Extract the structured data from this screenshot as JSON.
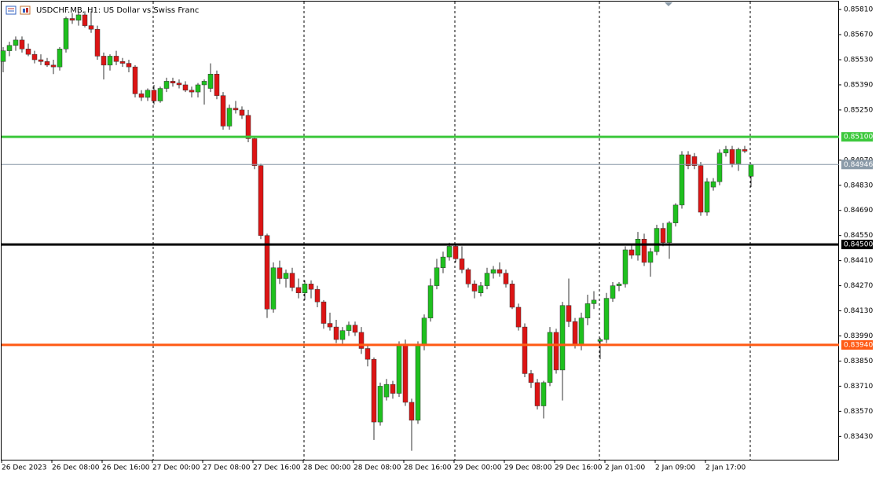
{
  "chart_data": {
    "type": "candlestick",
    "title": "USDCHF.MB, H1:  US Dollar vs Swiss Franc",
    "up_color": "#1ec01e",
    "down_color": "#dc1414",
    "categories": [
      "26 Dec 2023",
      null,
      null,
      null,
      null,
      null,
      null,
      null,
      "26 Dec 08:00",
      null,
      null,
      null,
      null,
      null,
      null,
      null,
      "26 Dec 16:00",
      null,
      null,
      null,
      null,
      null,
      null,
      null,
      "27 Dec 00:00",
      null,
      null,
      null,
      null,
      null,
      null,
      null,
      "27 Dec 08:00",
      null,
      null,
      null,
      null,
      null,
      null,
      null,
      "27 Dec 16:00",
      null,
      null,
      null,
      null,
      null,
      null,
      null,
      "28 Dec 00:00",
      null,
      null,
      null,
      null,
      null,
      null,
      null,
      "28 Dec 08:00",
      null,
      null,
      null,
      null,
      null,
      null,
      null,
      "28 Dec 16:00",
      null,
      null,
      null,
      null,
      null,
      null,
      null,
      "29 Dec 00:00",
      null,
      null,
      null,
      null,
      null,
      null,
      null,
      "29 Dec 08:00",
      null,
      null,
      null,
      null,
      null,
      null,
      null,
      "29 Dec 16:00",
      null,
      null,
      null,
      null,
      null,
      null,
      null,
      "2 Jan 01:00",
      null,
      null,
      null,
      null,
      null,
      null,
      null,
      "2 Jan 09:00",
      null,
      null,
      null,
      null,
      null,
      null,
      null,
      "2 Jan 17:00",
      null,
      null,
      null,
      null,
      null,
      null,
      null
    ],
    "open": [
      0.8552,
      0.8558,
      0.8561,
      0.8564,
      0.8559,
      0.8556,
      0.8553,
      0.8552,
      0.855,
      0.8549,
      0.8559,
      0.8576,
      0.8575,
      0.8578,
      0.8572,
      0.857,
      0.8555,
      0.855,
      0.8555,
      0.8552,
      0.8551,
      0.8549,
      0.8534,
      0.8532,
      0.8536,
      0.853,
      0.8537,
      0.8541,
      0.854,
      0.8539,
      0.8536,
      0.8535,
      0.8539,
      0.8537,
      0.8545,
      0.8533,
      0.8516,
      0.8526,
      0.8525,
      0.8522,
      0.8509,
      0.8494,
      0.8455,
      0.8414,
      0.8437,
      0.8431,
      0.8434,
      0.8426,
      0.8423,
      0.8428,
      0.8425,
      0.8418,
      0.8406,
      0.8404,
      0.8397,
      0.8402,
      0.8405,
      0.8401,
      0.8392,
      0.8386,
      0.8351,
      0.8365,
      0.8372,
      0.8367,
      0.8394,
      0.8362,
      0.8352,
      0.8394,
      0.8409,
      0.8427,
      0.8437,
      0.8443,
      0.8449,
      0.8442,
      0.8436,
      0.8428,
      0.8423,
      0.8427,
      0.8434,
      0.8436,
      0.8434,
      0.8428,
      0.8415,
      0.8404,
      0.8378,
      0.8373,
      0.836,
      0.8373,
      0.8401,
      0.838,
      0.8416,
      0.8407,
      0.8394,
      0.8409,
      0.8417,
      0.8396,
      0.8397,
      0.842,
      0.8427,
      0.8428,
      0.8447,
      0.8444,
      0.8453,
      0.844,
      0.8446,
      0.8459,
      0.8451,
      0.8462,
      0.8472,
      0.85,
      0.8499,
      0.8494,
      0.8468,
      0.8482,
      0.8485,
      0.8501,
      0.8503,
      0.8495,
      0.8503,
      0.8488
    ],
    "high": [
      0.856,
      0.8563,
      0.8566,
      0.8566,
      0.8562,
      0.8558,
      0.8556,
      0.8554,
      0.8553,
      0.856,
      0.8577,
      0.8579,
      0.858,
      0.858,
      0.858,
      0.8572,
      0.8557,
      0.8556,
      0.8558,
      0.8554,
      0.8553,
      0.855,
      0.8536,
      0.8537,
      0.8539,
      0.8538,
      0.8543,
      0.8543,
      0.8542,
      0.8541,
      0.8538,
      0.854,
      0.8542,
      0.8551,
      0.8547,
      0.8535,
      0.8528,
      0.853,
      0.8527,
      0.8525,
      0.851,
      0.8495,
      0.8456,
      0.844,
      0.8441,
      0.8436,
      0.8437,
      0.8431,
      0.843,
      0.843,
      0.8427,
      0.8419,
      0.8412,
      0.8408,
      0.8404,
      0.8407,
      0.8407,
      0.8404,
      0.8394,
      0.8387,
      0.8373,
      0.8375,
      0.8374,
      0.8396,
      0.8397,
      0.8364,
      0.8396,
      0.8411,
      0.8431,
      0.8442,
      0.8446,
      0.8451,
      0.845,
      0.8449,
      0.8437,
      0.843,
      0.8429,
      0.8437,
      0.8438,
      0.844,
      0.8436,
      0.843,
      0.8417,
      0.8406,
      0.838,
      0.8375,
      0.8374,
      0.8404,
      0.8403,
      0.8418,
      0.8431,
      0.8409,
      0.8412,
      0.8422,
      0.8424,
      0.8398,
      0.8423,
      0.8429,
      0.8429,
      0.8449,
      0.845,
      0.8457,
      0.8456,
      0.8448,
      0.8461,
      0.8462,
      0.8463,
      0.8473,
      0.8502,
      0.8502,
      0.8501,
      0.8496,
      0.8487,
      0.8487,
      0.8503,
      0.8505,
      0.8505,
      0.8504,
      0.8505,
      0.8495
    ],
    "low": [
      0.8546,
      0.8555,
      0.8558,
      0.8557,
      0.8555,
      0.8551,
      0.855,
      0.8549,
      0.8545,
      0.8547,
      0.8557,
      0.8573,
      0.8572,
      0.8571,
      0.8568,
      0.8553,
      0.8542,
      0.8547,
      0.855,
      0.8549,
      0.8546,
      0.8532,
      0.853,
      0.853,
      0.8528,
      0.8529,
      0.8535,
      0.8538,
      0.8537,
      0.8535,
      0.8532,
      0.8532,
      0.8528,
      0.8535,
      0.8531,
      0.8514,
      0.8514,
      0.8523,
      0.852,
      0.8507,
      0.8492,
      0.8453,
      0.8409,
      0.8412,
      0.8428,
      0.8426,
      0.8424,
      0.842,
      0.8419,
      0.842,
      0.8415,
      0.8403,
      0.8402,
      0.8395,
      0.8394,
      0.8399,
      0.8399,
      0.8389,
      0.8382,
      0.8341,
      0.8349,
      0.8363,
      0.8364,
      0.8365,
      0.836,
      0.8335,
      0.835,
      0.8391,
      0.8407,
      0.8425,
      0.8434,
      0.8441,
      0.844,
      0.8434,
      0.8426,
      0.842,
      0.8421,
      0.8425,
      0.8431,
      0.8432,
      0.8426,
      0.8414,
      0.8402,
      0.8376,
      0.837,
      0.8358,
      0.8353,
      0.8371,
      0.8378,
      0.8363,
      0.8404,
      0.8392,
      0.8391,
      0.8405,
      0.8414,
      0.8386,
      0.8395,
      0.8418,
      0.8424,
      0.8426,
      0.8442,
      0.8441,
      0.8438,
      0.8432,
      0.8444,
      0.8449,
      0.8442,
      0.846,
      0.847,
      0.8492,
      0.8492,
      0.8466,
      0.8466,
      0.848,
      0.8483,
      0.8499,
      0.8493,
      0.8491,
      0.8501,
      0.8482
    ],
    "close": [
      0.8558,
      0.8561,
      0.8564,
      0.8559,
      0.8556,
      0.8553,
      0.8552,
      0.855,
      0.8549,
      0.8559,
      0.8576,
      0.8575,
      0.8578,
      0.8572,
      0.857,
      0.8555,
      0.855,
      0.8555,
      0.8552,
      0.8551,
      0.8549,
      0.8534,
      0.8532,
      0.8536,
      0.853,
      0.8537,
      0.8541,
      0.854,
      0.8539,
      0.8536,
      0.8535,
      0.8539,
      0.8541,
      0.8545,
      0.8533,
      0.8516,
      0.8526,
      0.8525,
      0.8522,
      0.8509,
      0.8494,
      0.8455,
      0.8414,
      0.8437,
      0.8431,
      0.8434,
      0.8426,
      0.8423,
      0.8428,
      0.8425,
      0.8418,
      0.8406,
      0.8404,
      0.8397,
      0.8402,
      0.8405,
      0.8401,
      0.8392,
      0.8386,
      0.8351,
      0.8371,
      0.8372,
      0.8367,
      0.8394,
      0.8362,
      0.8352,
      0.8394,
      0.8409,
      0.8427,
      0.8437,
      0.8443,
      0.8449,
      0.8442,
      0.8436,
      0.8428,
      0.8424,
      0.8427,
      0.8434,
      0.8436,
      0.8434,
      0.8428,
      0.8415,
      0.8404,
      0.8378,
      0.8373,
      0.836,
      0.8373,
      0.8401,
      0.838,
      0.8416,
      0.8407,
      0.8394,
      0.8409,
      0.8417,
      0.8419,
      0.8397,
      0.842,
      0.8427,
      0.8428,
      0.8447,
      0.8444,
      0.8453,
      0.844,
      0.8446,
      0.8459,
      0.8451,
      0.8462,
      0.8472,
      0.85,
      0.8494,
      0.8494,
      0.8468,
      0.8485,
      0.8485,
      0.8501,
      0.8503,
      0.8495,
      0.8503,
      0.8502,
      0.84946
    ],
    "ylim": [
      0.833,
      0.85863
    ],
    "yticks": [
      {
        "value": 0.8581,
        "label": "0.85810"
      },
      {
        "value": 0.8567,
        "label": "0.85670"
      },
      {
        "value": 0.8553,
        "label": "0.85530"
      },
      {
        "value": 0.8539,
        "label": "0.85390"
      },
      {
        "value": 0.8525,
        "label": "0.85250"
      },
      {
        "value": 0.8497,
        "label": "0.84970"
      },
      {
        "value": 0.8483,
        "label": "0.84830"
      },
      {
        "value": 0.8469,
        "label": "0.84690"
      },
      {
        "value": 0.8455,
        "label": "0.84550"
      },
      {
        "value": 0.8441,
        "label": "0.84410"
      },
      {
        "value": 0.8427,
        "label": "0.84270"
      },
      {
        "value": 0.8413,
        "label": "0.84130"
      },
      {
        "value": 0.8399,
        "label": "0.83990"
      },
      {
        "value": 0.8385,
        "label": "0.83850"
      },
      {
        "value": 0.8371,
        "label": "0.83710"
      },
      {
        "value": 0.8357,
        "label": "0.83570"
      },
      {
        "value": 0.8343,
        "label": "0.83430"
      }
    ],
    "levels": [
      {
        "value": 0.851,
        "label": "0.85100",
        "color": "#3cc83c",
        "width": 3
      },
      {
        "value": 0.84946,
        "label": "0.84946",
        "color": "#8a9aa8",
        "width": 1
      },
      {
        "value": 0.845,
        "label": "0.84500",
        "color": "#000000",
        "width": 3
      },
      {
        "value": 0.8394,
        "label": "0.83940",
        "color": "#ff5a14",
        "width": 3
      }
    ]
  }
}
